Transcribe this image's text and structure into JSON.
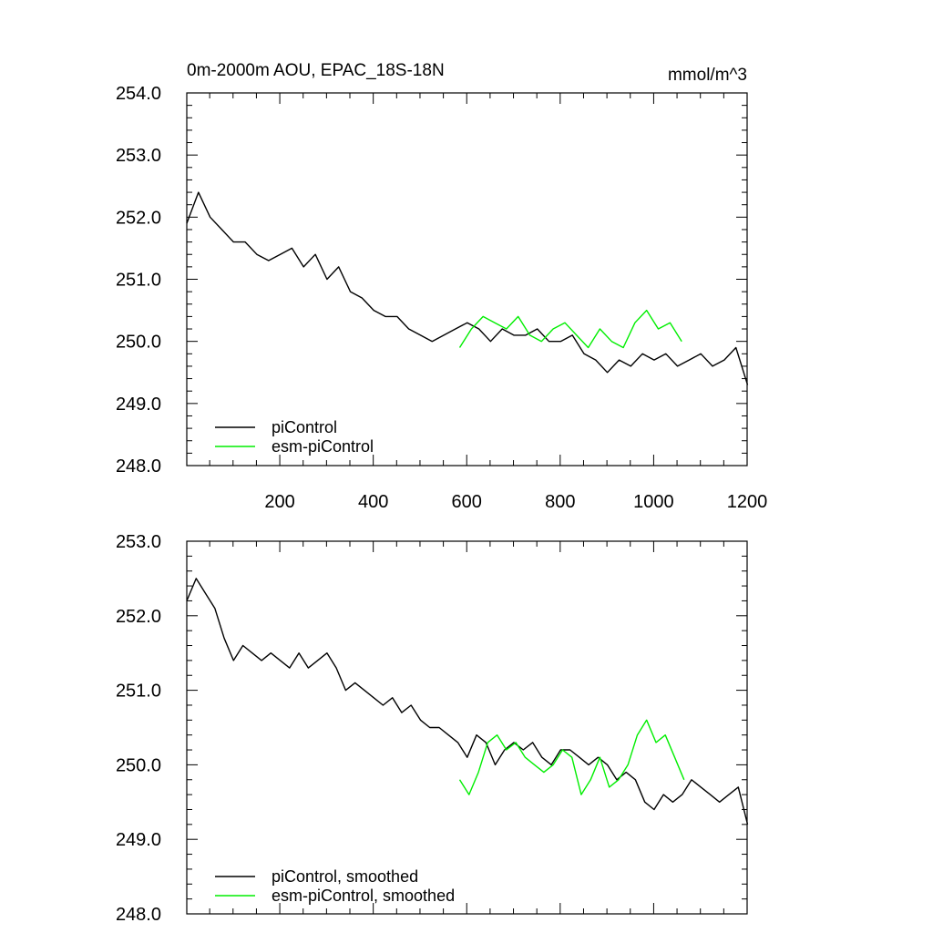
{
  "colors": {
    "piControl": "#000000",
    "esm_piControl": "#00ee00",
    "background": "#ffffff"
  },
  "chart_data": [
    {
      "type": "line",
      "title_left": "0m-2000m AOU, EPAC_18S-18N",
      "title_right": "mmol/m^3",
      "xlim": [
        1,
        1200
      ],
      "ylim": [
        248.0,
        254.0
      ],
      "x_ticks": [
        200,
        400,
        600,
        800,
        1000,
        1200
      ],
      "x_tick_labels": [
        "200",
        "400",
        "600",
        "800",
        "1000",
        "1200"
      ],
      "y_ticks": [
        248.0,
        249.0,
        250.0,
        251.0,
        252.0,
        253.0,
        254.0
      ],
      "y_tick_labels": [
        "248.0",
        "249.0",
        "250.0",
        "251.0",
        "252.0",
        "253.0",
        "254.0"
      ],
      "legend_position": "bottom-left",
      "series": [
        {
          "name": "piControl",
          "color": "#000000",
          "x_start": 1,
          "x_step": 25,
          "values": [
            251.9,
            252.4,
            252.0,
            251.8,
            251.6,
            251.6,
            251.4,
            251.3,
            251.4,
            251.5,
            251.2,
            251.4,
            251.0,
            251.2,
            250.8,
            250.7,
            250.5,
            250.4,
            250.4,
            250.2,
            250.1,
            250.0,
            250.1,
            250.2,
            250.3,
            250.2,
            250.0,
            250.2,
            250.1,
            250.1,
            250.2,
            250.0,
            250.0,
            250.1,
            249.8,
            249.7,
            249.5,
            249.7,
            249.6,
            249.8,
            249.7,
            249.8,
            249.6,
            249.7,
            249.8,
            249.6,
            249.7,
            249.9,
            249.3
          ]
        },
        {
          "name": "esm-piControl",
          "color": "#00ee00",
          "x_start": 585,
          "x_step": 25,
          "values": [
            249.9,
            250.2,
            250.4,
            250.3,
            250.2,
            250.4,
            250.1,
            250.0,
            250.2,
            250.3,
            250.1,
            249.9,
            250.2,
            250.0,
            249.9,
            250.3,
            250.5,
            250.2,
            250.3,
            250.0
          ]
        }
      ]
    },
    {
      "type": "line",
      "xlim": [
        1,
        1200
      ],
      "ylim": [
        248.0,
        253.0
      ],
      "y_ticks": [
        248.0,
        249.0,
        250.0,
        251.0,
        252.0,
        253.0
      ],
      "y_tick_labels": [
        "248.0",
        "249.0",
        "250.0",
        "251.0",
        "252.0",
        "253.0"
      ],
      "legend_position": "bottom-left",
      "series": [
        {
          "name": "piControl, smoothed",
          "color": "#000000",
          "x_start": 1,
          "x_step": 20,
          "values": [
            252.2,
            252.5,
            252.3,
            252.1,
            251.7,
            251.4,
            251.6,
            251.5,
            251.4,
            251.5,
            251.4,
            251.3,
            251.5,
            251.3,
            251.4,
            251.5,
            251.3,
            251.0,
            251.1,
            251.0,
            250.9,
            250.8,
            250.9,
            250.7,
            250.8,
            250.6,
            250.5,
            250.5,
            250.4,
            250.3,
            250.1,
            250.4,
            250.3,
            250.0,
            250.2,
            250.3,
            250.2,
            250.3,
            250.1,
            250.0,
            250.2,
            250.2,
            250.1,
            250.0,
            250.1,
            250.0,
            249.8,
            249.9,
            249.8,
            249.5,
            249.4,
            249.6,
            249.5,
            249.6,
            249.8,
            249.7,
            249.6,
            249.5,
            249.6,
            249.7,
            249.2
          ]
        },
        {
          "name": "esm-piControl, smoothed",
          "color": "#00ee00",
          "x_start": 585,
          "x_step": 20,
          "values": [
            249.8,
            249.6,
            249.9,
            250.3,
            250.4,
            250.2,
            250.3,
            250.1,
            250.0,
            249.9,
            250.0,
            250.2,
            250.1,
            249.6,
            249.8,
            250.1,
            249.7,
            249.8,
            250.0,
            250.4,
            250.6,
            250.3,
            250.4,
            250.1,
            249.8
          ]
        }
      ]
    }
  ]
}
